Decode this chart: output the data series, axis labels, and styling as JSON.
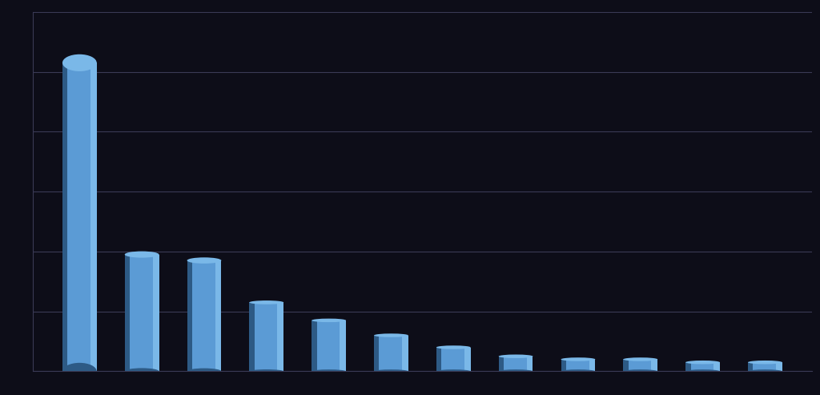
{
  "values": [
    103,
    39,
    37,
    23,
    17,
    12,
    8,
    5,
    4,
    4,
    3,
    3
  ],
  "bar_color_main": "#5b9bd5",
  "bar_color_light": "#7ab8e8",
  "bar_color_dark": "#3a6fa0",
  "bar_color_shadow": "#2d5a85",
  "background_color": "#0d0d18",
  "grid_color": "#3a3a55",
  "ylim": [
    0,
    120
  ],
  "yticks": [
    0,
    20,
    40,
    60,
    80,
    100,
    120
  ],
  "bar_width": 0.55,
  "n_bars": 12
}
